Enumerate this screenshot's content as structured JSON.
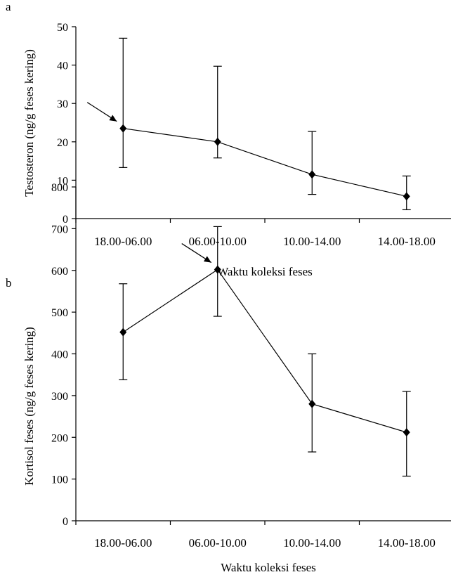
{
  "chart_data": [
    {
      "panel_label": "a",
      "type": "line",
      "title": "",
      "xlabel": "Waktu koleksi feses",
      "ylabel": "Testosteron (ng/g feses kering)",
      "categories": [
        "18.00-06.00",
        "06.00-10.00",
        "10.00-14.00",
        "14.00-18.00"
      ],
      "ylim": [
        0,
        50
      ],
      "yticks": [
        0,
        10,
        20,
        30,
        40,
        50
      ],
      "values": [
        23.5,
        20.0,
        11.5,
        5.8
      ],
      "error_low": [
        13.3,
        15.8,
        6.3,
        2.3
      ],
      "error_high": [
        47.0,
        39.7,
        22.7,
        11.1
      ],
      "arrow_at": 0,
      "grid": false,
      "legend": "none"
    },
    {
      "panel_label": "b",
      "type": "line",
      "title": "",
      "xlabel": "Waktu koleksi feses",
      "ylabel": "Kortisol feses (ng/g feses kering)",
      "categories": [
        "18.00-06.00",
        "06.00-10.00",
        "10.00-14.00",
        "14.00-18.00"
      ],
      "ylim": [
        0,
        800
      ],
      "yticks": [
        0,
        100,
        200,
        300,
        400,
        500,
        600,
        700,
        800
      ],
      "values": [
        452,
        602,
        280,
        212
      ],
      "error_low": [
        338,
        490,
        165,
        107
      ],
      "error_high": [
        568,
        705,
        400,
        310
      ],
      "arrow_at": 1,
      "grid": false,
      "legend": "none"
    }
  ]
}
